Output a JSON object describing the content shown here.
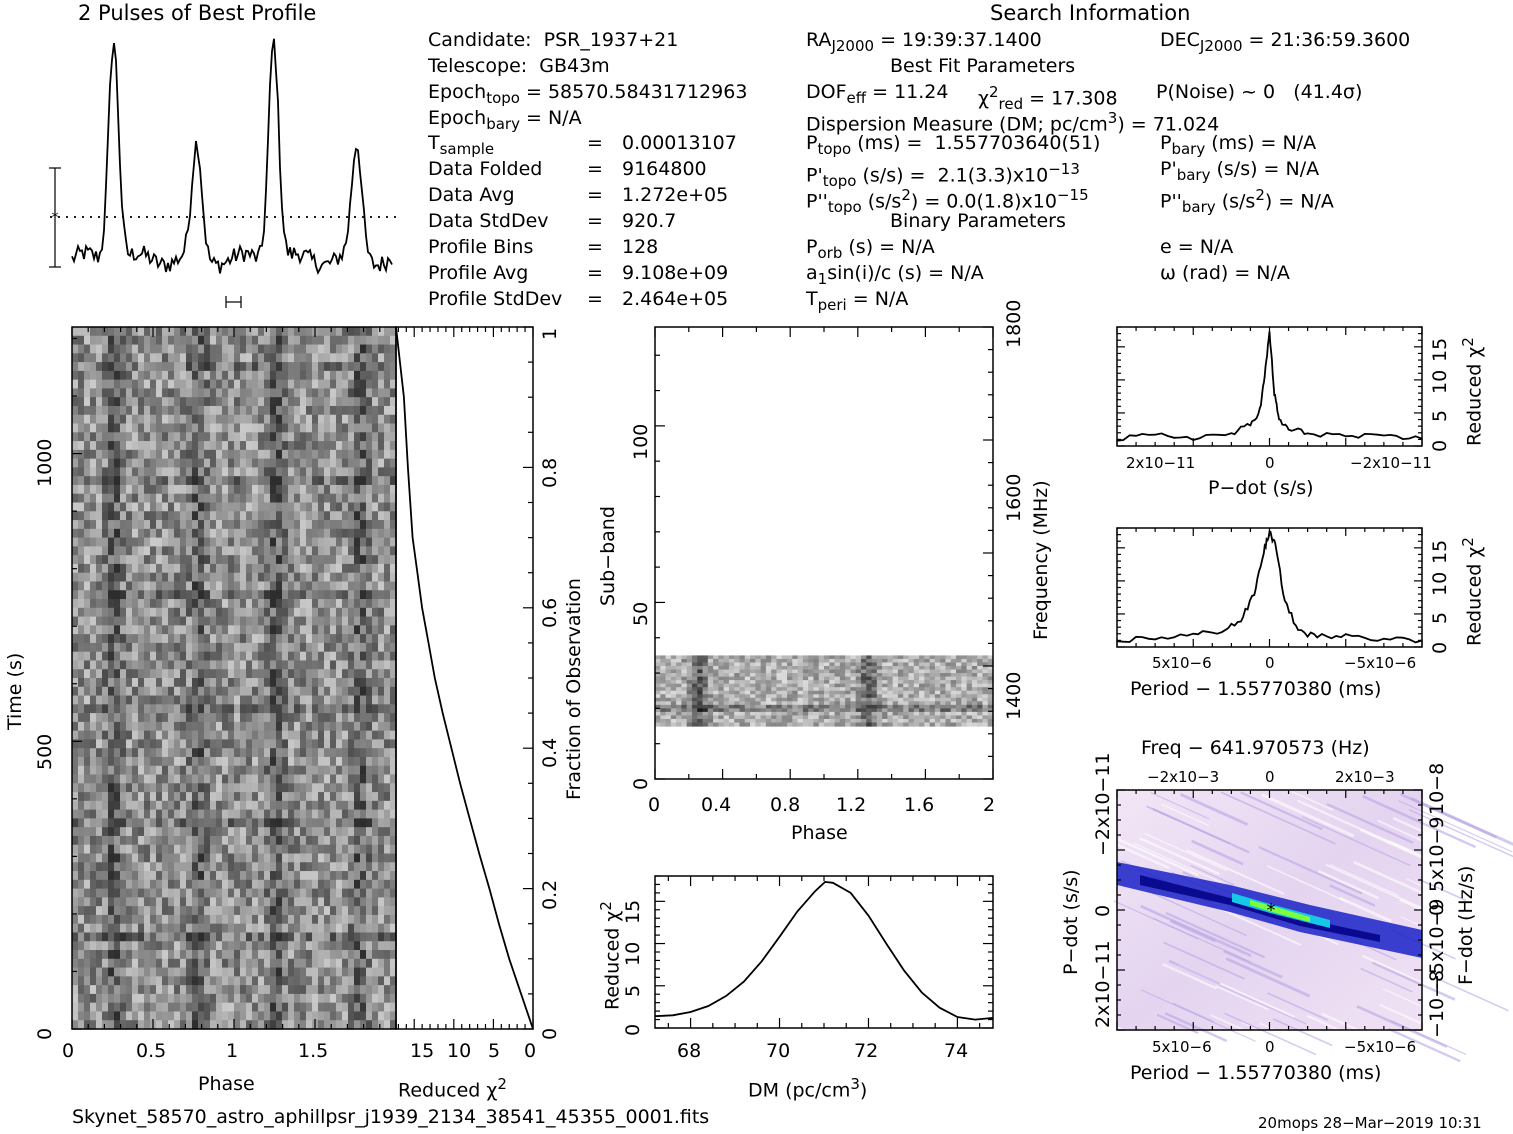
{
  "header": {
    "profile_title": "2 Pulses of Best Profile",
    "search_title": "Search Information",
    "best_fit_title": "Best Fit Parameters",
    "binary_title": "Binary Parameters"
  },
  "info": {
    "candidate": "Candidate:  PSR_1937+21",
    "telescope": "Telescope:  GB43m",
    "epoch_topo": "Epoch",
    "epoch_topo_sub": "topo",
    "epoch_topo_val": " = 58570.58431712963",
    "epoch_bary": "Epoch",
    "epoch_bary_sub": "bary",
    "epoch_bary_val": " = N/A",
    "t_sample": "T",
    "t_sample_sub": "sample",
    "rows": [
      {
        "label": "",
        "eq": "=",
        "value": "0.00013107"
      },
      {
        "label": "Data Folded",
        "eq": "=",
        "value": "9164800"
      },
      {
        "label": "Data Avg",
        "eq": "=",
        "value": "1.272e+05"
      },
      {
        "label": "Data StdDev",
        "eq": "=",
        "value": "920.7"
      },
      {
        "label": "Profile Bins",
        "eq": "=",
        "value": "128"
      },
      {
        "label": "Profile Avg",
        "eq": "=",
        "value": "9.108e+09"
      },
      {
        "label": "Profile StdDev",
        "eq": "=",
        "value": "2.464e+05"
      }
    ]
  },
  "search": {
    "ra": "RA",
    "ra_sub": "J2000",
    "ra_val": " = 19:39:37.1400",
    "dec": "DEC",
    "dec_sub": "J2000",
    "dec_val": " = 21:36:59.3600",
    "dof": "DOF",
    "dof_sub": "eff",
    "dof_val": " = 11.24",
    "chi": "χ",
    "chi_sup": "2",
    "chi_sub": "red",
    "chi_val": " = 17.308",
    "pnoise": "P(Noise) ~ 0   (41.4σ)",
    "dm": "Dispersion Measure (DM; pc/cm",
    "dm_sup": "3",
    "dm_val": ") = 71.024",
    "ptopo": "P",
    "ptopo_sub": "topo",
    "ptopo_val": " (ms) =  1.557703640(51)",
    "pbary": "P",
    "pbary_sub": "bary",
    "pbary_val": " (ms) = N/A",
    "pdtopo": "P'",
    "pdtopo_sub": "topo",
    "pdtopo_val": " (s/s) =  2.1(3.3)x10",
    "pdtopo_exp": "−13",
    "pdbary": "P'",
    "pdbary_sub": "bary",
    "pdbary_val": " (s/s) = N/A",
    "pddtopo": "P''",
    "pddtopo_sub": "topo",
    "pddtopo_val": " (s/s",
    "pddtopo_sup": "2",
    "pddtopo_val2": ") = 0.0(1.8)x10",
    "pddtopo_exp": "−15",
    "pddbary": "P''",
    "pddbary_sub": "bary",
    "pddbary_val": " (s/s",
    "pddbary_sup": "2",
    "pddbary_val2": ") = N/A",
    "porb": "P",
    "porb_sub": "orb",
    "porb_val": " (s) = N/A",
    "ecc": "e = N/A",
    "asini": "a",
    "asini_sub": "1",
    "asini_val": "sin(i)/c (s) = N/A",
    "omega": "ω (rad) = N/A",
    "tperi": "T",
    "tperi_sub": "peri",
    "tperi_val": " = N/A"
  },
  "footer": {
    "filename": "Skynet_58570_astro_aphillpsr_j1939_2134_38541_45355_0001.fits",
    "stamp": "20mops 28−Mar−2019 10:31"
  },
  "labels": {
    "time_s": "Time (s)",
    "phase": "Phase",
    "reduced": "Reduced χ",
    "reduced_sup": "2",
    "fraction": "Fraction of Observation",
    "subband": "Sub−band",
    "frequency": "Frequency (MHz)",
    "dm_axis": "DM (pc/cm",
    "dm_axis_sup": "3",
    "dm_axis_end": ")",
    "pdot_ss": "P−dot (s/s)",
    "period_offset": "Period − 1.55770380 (ms)",
    "freq_offset": "Freq − 641.970573 (Hz)",
    "fdot": "F−dot (Hz/s)"
  },
  "chart_data": [
    {
      "type": "line",
      "title": "2 Pulses of Best Profile",
      "x_range": [
        0,
        2
      ],
      "peaks_phase": [
        0.26,
        0.78,
        1.26,
        1.78
      ],
      "peak_relative_heights": [
        1.0,
        0.5,
        1.0,
        0.5
      ]
    },
    {
      "type": "heatmap",
      "xlabel": "Phase",
      "ylabel": "Time (s)",
      "x_ticks": [
        "0",
        "0.5",
        "1",
        "1.5"
      ],
      "y_ticks": [
        "0",
        "500",
        "1000"
      ],
      "xlim": [
        0,
        2
      ],
      "ylim": [
        0,
        1220
      ]
    },
    {
      "type": "line",
      "xlabel": "Reduced χ2",
      "ylabel": "Fraction of Observation",
      "x_ticks": [
        "15",
        "10",
        "5",
        "0"
      ],
      "y_ticks": [
        "0",
        "0.2",
        "0.4",
        "0.6",
        "0.8",
        "1"
      ],
      "x": [
        0,
        1.5,
        3,
        4.3,
        5.5,
        6.8,
        8,
        9.2,
        10.3,
        11.4,
        12.4,
        13.2,
        14,
        14.6,
        15.2,
        15.8,
        16.3,
        17.3
      ],
      "y": [
        0,
        0.05,
        0.1,
        0.15,
        0.2,
        0.25,
        0.3,
        0.35,
        0.4,
        0.45,
        0.5,
        0.55,
        0.6,
        0.65,
        0.7,
        0.8,
        0.9,
        1.0
      ],
      "xlim": [
        17.3,
        0
      ],
      "ylim": [
        0,
        1
      ]
    },
    {
      "type": "heatmap",
      "xlabel": "Phase",
      "ylabel": "Sub−band",
      "y2label": "Frequency (MHz)",
      "x_ticks": [
        "0",
        "0.4",
        "0.8",
        "1.2",
        "1.6",
        "2"
      ],
      "y_ticks": [
        "0",
        "50",
        "100"
      ],
      "y2_ticks": [
        "1400",
        "1600",
        "1800"
      ],
      "xlim": [
        0,
        2
      ],
      "ylim": [
        0,
        128
      ],
      "filled_subbands": [
        15,
        35
      ]
    },
    {
      "type": "line",
      "xlabel": "DM (pc/cm3)",
      "ylabel": "Reduced χ2",
      "x_ticks": [
        "68",
        "70",
        "72",
        "74"
      ],
      "y_ticks": [
        "0",
        "5",
        "10",
        "15"
      ],
      "x": [
        67.2,
        67.6,
        68.0,
        68.4,
        68.8,
        69.2,
        69.6,
        70.0,
        70.4,
        70.8,
        71.024,
        71.2,
        71.6,
        72.0,
        72.4,
        72.8,
        73.2,
        73.6,
        74.0,
        74.4,
        74.8
      ],
      "y": [
        1.4,
        1.5,
        1.9,
        2.6,
        3.8,
        5.5,
        7.9,
        10.8,
        13.8,
        16.2,
        17.3,
        17.2,
        16.0,
        13.3,
        10.0,
        6.8,
        4.2,
        2.4,
        1.3,
        1.0,
        1.2
      ],
      "xlim": [
        67.2,
        74.8
      ],
      "ylim": [
        0,
        18
      ]
    },
    {
      "type": "line",
      "xlabel": "P−dot (s/s)",
      "ylabel": "Reduced χ2",
      "x_ticks": [
        "2x10−11",
        "0",
        "−2x10−11"
      ],
      "y_ticks": [
        "0",
        "5",
        "10",
        "15"
      ],
      "x": [
        3.2e-11,
        2.4e-11,
        1.6e-11,
        8e-12,
        4e-12,
        2e-12,
        1e-12,
        0,
        -1e-12,
        -2e-12,
        -4e-12,
        -8e-12,
        -1.6e-11,
        -2.4e-11,
        -3.2e-11
      ],
      "y": [
        1.0,
        1.6,
        1.3,
        1.8,
        3.2,
        5.5,
        10.5,
        17.3,
        8.0,
        4.0,
        2.5,
        2.0,
        1.5,
        1.3,
        1.1
      ],
      "xlim": [
        3.2e-11,
        -3.2e-11
      ],
      "ylim": [
        0,
        18
      ]
    },
    {
      "type": "line",
      "xlabel": "Period − 1.55770380 (ms)",
      "ylabel": "Reduced χ2",
      "x_ticks": [
        "5x10−6",
        "0",
        "−5x10−6"
      ],
      "y_ticks": [
        "0",
        "5",
        "10",
        "15"
      ],
      "x": [
        8e-06,
        6e-06,
        4e-06,
        2.5e-06,
        1.5e-06,
        8e-07,
        3e-07,
        0,
        -3e-07,
        -8e-07,
        -1.5e-06,
        -2.5e-06,
        -4e-06,
        -6e-06,
        -8e-06
      ],
      "y": [
        1.0,
        1.4,
        1.8,
        2.5,
        4.0,
        8.0,
        14.5,
        17.3,
        15.5,
        7.0,
        2.5,
        1.5,
        2.0,
        1.2,
        1.0
      ],
      "xlim": [
        8e-06,
        -8e-06
      ],
      "ylim": [
        0,
        18
      ]
    },
    {
      "type": "heatmap",
      "title": "Freq − 641.970573 (Hz)",
      "xlabel": "Period − 1.55770380 (ms)",
      "ylabel": "P−dot (s/s)",
      "y2label": "F−dot (Hz/s)",
      "x_ticks": [
        "5x10−6",
        "0",
        "−5x10−6"
      ],
      "x2_ticks": [
        "−2x10−3",
        "0",
        "2x10−3"
      ],
      "y_ticks": [
        "−2x10−11",
        "0",
        "2x10−11"
      ],
      "y2_ticks": [
        "10−8",
        "5x10−9",
        "0",
        "−5x10−9",
        "−10−8"
      ]
    }
  ]
}
